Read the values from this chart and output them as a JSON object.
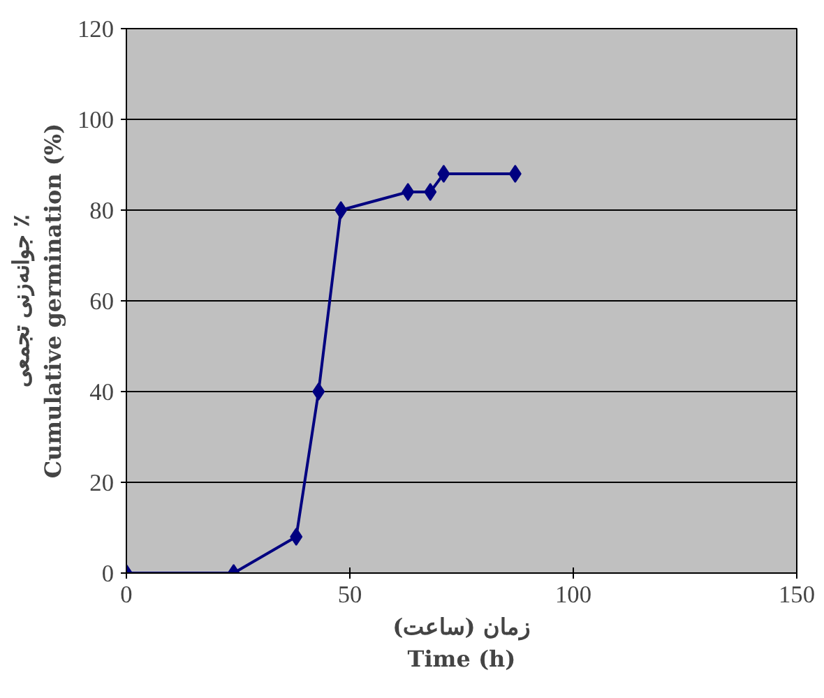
{
  "chart_data": {
    "type": "line",
    "xlabel": "زمان (ساعت)\nTime (h)",
    "ylabel": "جوانه‌زنی تجمعی ٪\nCumulative germination (%)",
    "x": [
      0,
      24,
      38,
      43,
      48,
      63,
      68,
      71,
      87
    ],
    "series": [
      {
        "color": "#000080",
        "values": [
          0,
          0,
          8,
          40,
          80,
          84,
          84,
          88,
          88
        ]
      }
    ],
    "xlim": [
      0,
      150
    ],
    "xticks": [
      0,
      50,
      100,
      150
    ],
    "ylim": [
      0,
      120
    ],
    "yticks": [
      0,
      20,
      40,
      60,
      80,
      100,
      120
    ],
    "grid": "y",
    "marker": "diamond",
    "line_style": "solid"
  }
}
